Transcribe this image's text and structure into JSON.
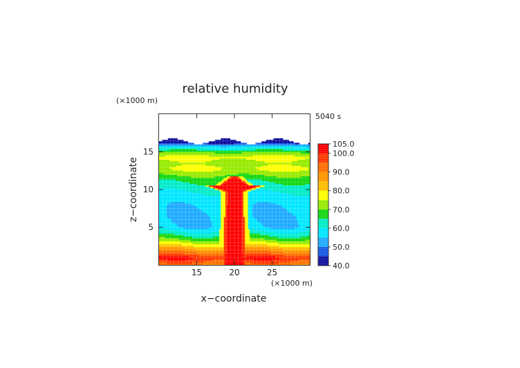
{
  "chart_data": {
    "type": "heatmap",
    "title": "relative humidity",
    "xlabel": "x−coordinate",
    "ylabel": "z−coordinate",
    "x_unit": "(×1000 m)",
    "y_unit": "(×1000 m)",
    "time_label": "5040 s",
    "xlim": [
      10,
      30
    ],
    "ylim": [
      0,
      20
    ],
    "x_ticks": [
      {
        "value": 15,
        "label": "15"
      },
      {
        "value": 20,
        "label": "20"
      },
      {
        "value": 25,
        "label": "25"
      }
    ],
    "y_ticks": [
      {
        "value": 5,
        "label": "5"
      },
      {
        "value": 10,
        "label": "10"
      },
      {
        "value": 15,
        "label": "15"
      }
    ],
    "colorbar": {
      "range": [
        40,
        105
      ],
      "levels": [
        {
          "value": 105,
          "label": "105.0"
        },
        {
          "value": 100,
          "label": "100.0"
        },
        {
          "value": 90,
          "label": "90.0"
        },
        {
          "value": 80,
          "label": "80.0"
        },
        {
          "value": 70,
          "label": "70.0"
        },
        {
          "value": 60,
          "label": "60.0"
        },
        {
          "value": 50,
          "label": "50.0"
        },
        {
          "value": 40,
          "label": "40.0"
        }
      ]
    },
    "field_profile": {
      "z": [
        0,
        0.5,
        1.0,
        1.5,
        2.2,
        3.0,
        3.6,
        4.3,
        5.0,
        6.5,
        8.0,
        9.5,
        10.5,
        11.3,
        12.0,
        12.8,
        13.5,
        14.3,
        15.0,
        15.4,
        15.8,
        16.1,
        16.4
      ],
      "rh": [
        89,
        96,
        100,
        93,
        85,
        75,
        68,
        62,
        56,
        55,
        56,
        59,
        63,
        66,
        71,
        76,
        73,
        77,
        70,
        62,
        55,
        46,
        40
      ]
    },
    "cloud_core": {
      "x_center": 20,
      "updraft_half_width": 0.9,
      "top_z": 11.7,
      "anvil_z": 10.6,
      "anvil_half_width": 3.3,
      "value": 103
    }
  }
}
